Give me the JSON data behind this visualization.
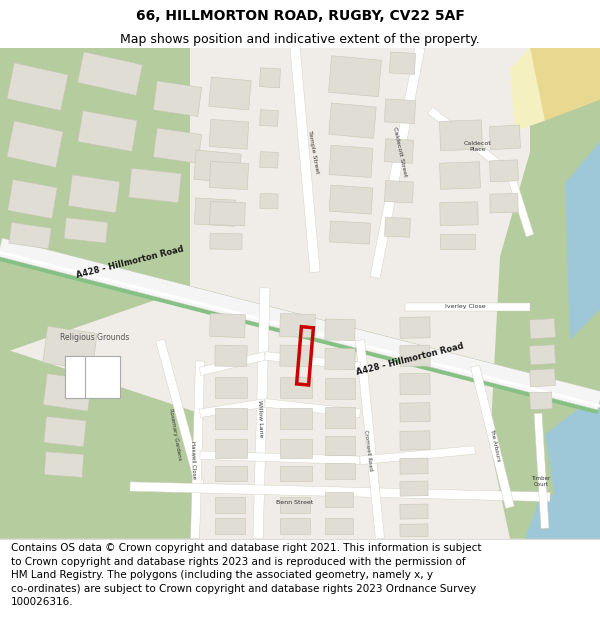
{
  "title_line1": "66, HILLMORTON ROAD, RUGBY, CV22 5AF",
  "title_line2": "Map shows position and indicative extent of the property.",
  "footer_lines": "Contains OS data © Crown copyright and database right 2021. This information is subject\nto Crown copyright and database rights 2023 and is reproduced with the permission of\nHM Land Registry. The polygons (including the associated geometry, namely x, y\nco-ordinates) are subject to Crown copyright and database rights 2023 Ordnance Survey\n100026316.",
  "title_fontsize": 10,
  "subtitle_fontsize": 9,
  "footer_fontsize": 7.5,
  "bg_color": "#ffffff",
  "map_bg": "#f0ede8",
  "building_fill": "#e0ddd4",
  "building_edge": "#c8c5b5",
  "road_white": "#ffffff",
  "road_edge": "#d0cdc0",
  "green_color": "#b5cc9f",
  "water_color": "#9ec8d8",
  "highlight_color": "#cc0000",
  "a428_green": "#85c085",
  "a428_text_color": "#1a1a1a",
  "tan_color": "#d4c060",
  "label_color": "#333333"
}
